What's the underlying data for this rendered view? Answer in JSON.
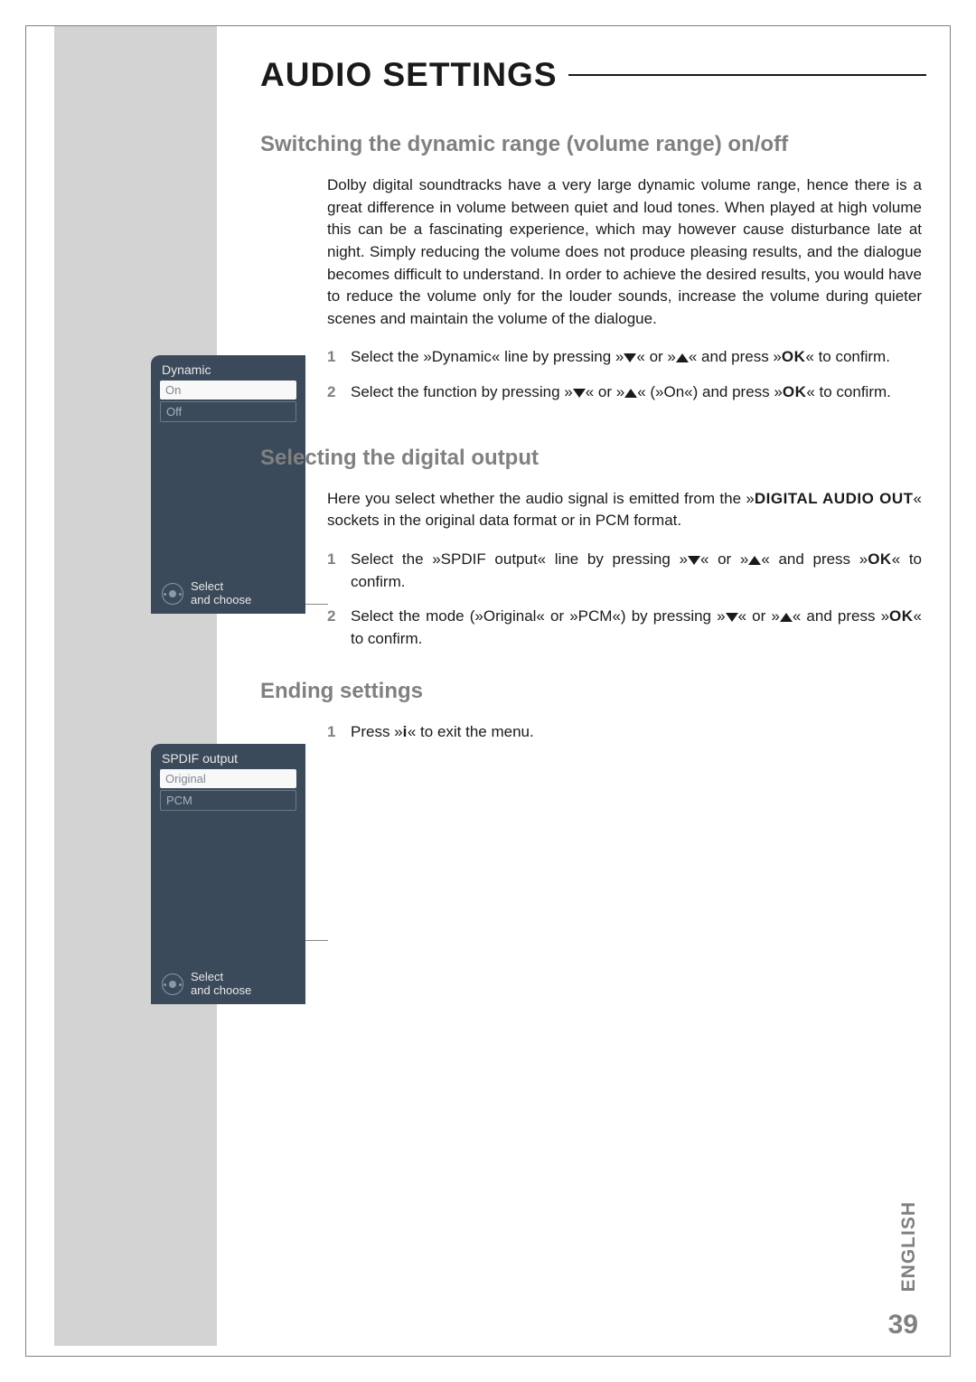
{
  "colors": {
    "page_bg": "#ffffff",
    "sidebar_bg": "#d3d3d3",
    "heading_gray": "#808080",
    "body_text": "#1a1a1a",
    "menu_bg": "#3a4a5a",
    "menu_selected_bg": "#f8f8f8",
    "menu_text_dim": "#a8b0b8",
    "border_gray": "#808080"
  },
  "typography": {
    "title_fontsize": 37,
    "section_heading_fontsize": 24,
    "body_fontsize": 17,
    "menu_fontsize": 14,
    "pagenum_fontsize": 30,
    "lang_fontsize": 21
  },
  "title": "AUDIO SETTINGS",
  "section1": {
    "heading": "Switching the dynamic range (volume range) on/off",
    "para": "Dolby digital soundtracks have a very large dynamic volume range, hence there is a great difference in volume between quiet and loud tones. When played at high volume this can be a fascinating experience, which may however cause disturbance late at night. Simply reducing the volume does not produce pleasing results, and the dialogue becomes difficult to understand. In order to achieve the desired results, you would have to reduce the volume only for the louder sounds, increase the volume during quieter scenes and maintain the volume of the dialogue.",
    "steps": [
      {
        "n": "1",
        "pre": "Select the »Dynamic« line by pressing »",
        "mid": "« or »",
        "post": "« and press »",
        "ok": "OK",
        "tail": "« to confirm."
      },
      {
        "n": "2",
        "pre": "Select the function by pressing »",
        "mid": "« or »",
        "post": "« (»On«) and press »",
        "ok": "OK",
        "tail": "« to confirm."
      }
    ]
  },
  "section2": {
    "heading": "Selecting the digital output",
    "para_pre": "Here you select whether the audio signal is emitted from the »",
    "para_bold": "DIGITAL AUDIO OUT",
    "para_post": "« sockets in the original data format or in PCM format.",
    "steps": [
      {
        "n": "1",
        "pre": "Select the »SPDIF output« line by pressing »",
        "mid": "« or »",
        "post": "« and press »",
        "ok": "OK",
        "tail": "« to confirm."
      },
      {
        "n": "2",
        "pre": "Select the mode (»Original« or »PCM«) by pressing »",
        "mid": "« or »",
        "post": "« and press »",
        "ok": "OK",
        "tail": "« to confirm."
      }
    ]
  },
  "section3": {
    "heading": "Ending settings",
    "steps": [
      {
        "n": "1",
        "pre": "Press »",
        "bold": "i",
        "post": "« to exit the menu."
      }
    ]
  },
  "menu1": {
    "title": "Dynamic",
    "items": [
      {
        "label": "On",
        "selected": true,
        "boxed": false
      },
      {
        "label": "Off",
        "selected": false,
        "boxed": true
      }
    ],
    "footer_line1": "Select",
    "footer_line2": "and choose"
  },
  "menu2": {
    "title": "SPDIF output",
    "items": [
      {
        "label": "Original",
        "selected": true,
        "boxed": false
      },
      {
        "label": "PCM",
        "selected": false,
        "boxed": true
      }
    ],
    "footer_line1": "Select",
    "footer_line2": "and choose"
  },
  "page_number": "39",
  "language": "ENGLISH"
}
